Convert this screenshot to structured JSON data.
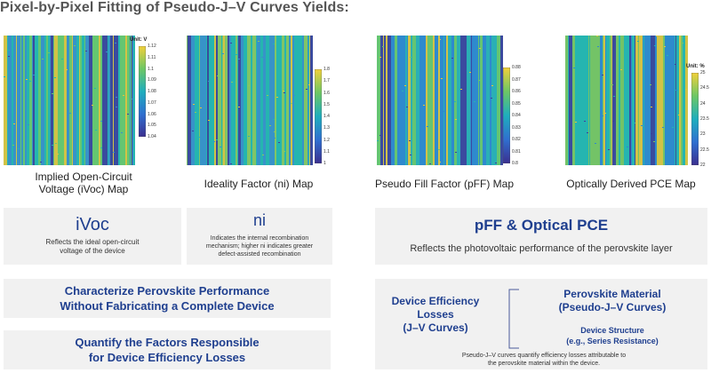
{
  "title": "Pixel-by-Pixel Fitting of Pseudo-J–V Curves Yields:",
  "maps": [
    {
      "caption_lines": [
        "Implied Open-Circuit",
        "Voltage (iVoc) Map"
      ],
      "unit": "Unit: V",
      "ticks": [
        "1.12",
        "1.11",
        "1.1",
        "1.09",
        "1.08",
        "1.07",
        "1.06",
        "1.05",
        "1.04"
      ],
      "colors": [
        "#3d3f9c",
        "#3a8fcb",
        "#26b5b0",
        "#6cc86a",
        "#e4c43b"
      ],
      "stripe_bias": 0.35
    },
    {
      "caption_lines": [
        "Ideality Factor (ni) Map"
      ],
      "unit": "",
      "ticks": [
        "1.8",
        "1.7",
        "1.6",
        "1.5",
        "1.4",
        "1.3",
        "1.2",
        "1.1",
        "1"
      ],
      "colors": [
        "#3d3f9c",
        "#3a8fcb",
        "#26b5b0",
        "#8bc75f",
        "#e4c43b"
      ],
      "stripe_bias": 0.6
    },
    {
      "caption_lines": [
        "Pseudo Fill Factor (pFF) Map"
      ],
      "unit": "",
      "ticks": [
        "0.88",
        "0.87",
        "0.86",
        "0.85",
        "0.84",
        "0.83",
        "0.82",
        "0.81",
        "0.8"
      ],
      "colors": [
        "#3d3f9c",
        "#2f86d0",
        "#2ab0b5",
        "#6cc86a",
        "#e4c43b"
      ],
      "stripe_bias": 0.45
    },
    {
      "caption_lines": [
        "Optically Derived PCE Map"
      ],
      "unit": "Unit: %",
      "ticks": [
        "25",
        "24.5",
        "24",
        "23.5",
        "23",
        "22.5",
        "22"
      ],
      "colors": [
        "#3d3f9c",
        "#2f86d0",
        "#26b5b0",
        "#7cc45f",
        "#e4c43b"
      ],
      "stripe_bias": 0.5
    }
  ],
  "boxes": {
    "ivoc": {
      "heading": "iVoc",
      "text_lines": [
        "Reflects the ideal open-circuit",
        "voltage of the device"
      ]
    },
    "ni": {
      "heading": "ni",
      "text_lines": [
        "Indicates the internal recombination",
        "mechanism; higher ni indicates greater",
        "defect-assisted recombination"
      ]
    },
    "pff": {
      "heading": "pFF & Optical PCE",
      "text": "Reflects the photovoltaic performance of the perovskite layer"
    },
    "characterize": {
      "lines": [
        "Characterize Perovskite Performance",
        "Without Fabricating a Complete Device"
      ]
    },
    "quantify": {
      "lines": [
        "Quantify the Factors Responsible",
        "for Device Efficiency Losses"
      ]
    },
    "losses": {
      "left_lines": [
        "Device Efficiency",
        "Losses",
        "(J–V Curves)"
      ],
      "right_top_lines": [
        "Perovskite Material",
        "(Pseudo-J–V Curves)"
      ],
      "right_bottom_lines": [
        "Device Structure",
        "(e.g., Series Resistance)"
      ],
      "footnote_lines": [
        "Pseudo-J–V curves quantify efficiency losses attributable to",
        "the perovskite material within the device."
      ]
    }
  },
  "accent_color": "#1f3f8f"
}
